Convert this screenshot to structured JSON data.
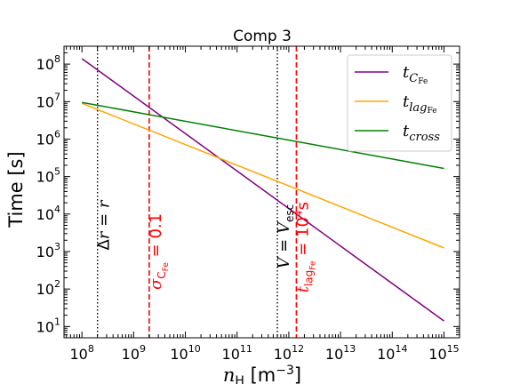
{
  "chart_data": {
    "type": "line",
    "title": "Comp 3",
    "xlabel": "n_H [m⁻³]",
    "ylabel": "Time [s]",
    "xscale": "log",
    "yscale": "log",
    "xlim": [
      45000000.0,
      2000000000000000.0
    ],
    "ylim": [
      5,
      300000000.0
    ],
    "x_ticks": [
      {
        "value": 100000000.0,
        "base": "10",
        "exp": "8"
      },
      {
        "value": 1000000000.0,
        "base": "10",
        "exp": "9"
      },
      {
        "value": 10000000000.0,
        "base": "10",
        "exp": "10"
      },
      {
        "value": 100000000000.0,
        "base": "10",
        "exp": "11"
      },
      {
        "value": 1000000000000.0,
        "base": "10",
        "exp": "12"
      },
      {
        "value": 10000000000000.0,
        "base": "10",
        "exp": "13"
      },
      {
        "value": 100000000000000.0,
        "base": "10",
        "exp": "14"
      },
      {
        "value": 1000000000000000.0,
        "base": "10",
        "exp": "15"
      }
    ],
    "y_ticks": [
      {
        "value": 10,
        "base": "10",
        "exp": "1"
      },
      {
        "value": 100,
        "base": "10",
        "exp": "2"
      },
      {
        "value": 1000,
        "base": "10",
        "exp": "3"
      },
      {
        "value": 10000.0,
        "base": "10",
        "exp": "4"
      },
      {
        "value": 100000.0,
        "base": "10",
        "exp": "5"
      },
      {
        "value": 1000000.0,
        "base": "10",
        "exp": "6"
      },
      {
        "value": 10000000.0,
        "base": "10",
        "exp": "7"
      },
      {
        "value": 100000000.0,
        "base": "10",
        "exp": "8"
      }
    ],
    "series": [
      {
        "label_main": "t",
        "label_sub": "C",
        "label_subsub": "Fe",
        "color": "#800080",
        "x": [
          100000000.0,
          1000000000000000.0
        ],
        "y": [
          140000000.0,
          14
        ]
      },
      {
        "label_main": "t",
        "label_sub": "lag",
        "label_subsub": "Fe",
        "color": "#ffa500",
        "x": [
          100000000.0,
          1000000000000000.0
        ],
        "y": [
          9000000.0,
          1250.0
        ]
      },
      {
        "label_main": "t",
        "label_sub": "cross",
        "label_subsub": "",
        "color": "#008000",
        "x": [
          100000000.0,
          1000000000000000.0
        ],
        "y": [
          9500000.0,
          165000.0
        ]
      }
    ],
    "vlines": [
      {
        "x": 200000000.0,
        "color": "#000000",
        "style": "dotted",
        "label": "Δr = r",
        "label_y": 5000
      },
      {
        "x": 2000000000.0,
        "color": "#ff0000",
        "style": "dashed",
        "label": "σ_CFe = 0.1",
        "label_y": 1000
      },
      {
        "x": 600000000000.0,
        "color": "#000000",
        "style": "dotted",
        "label": "V = V_esc",
        "label_y": 2500
      },
      {
        "x": 1400000000000.0,
        "color": "#ff0000",
        "style": "dashed",
        "label": "t_lagFe = 10⁴s",
        "label_y": 1300
      }
    ],
    "legend": {
      "position": "top-right"
    },
    "grid": false
  }
}
